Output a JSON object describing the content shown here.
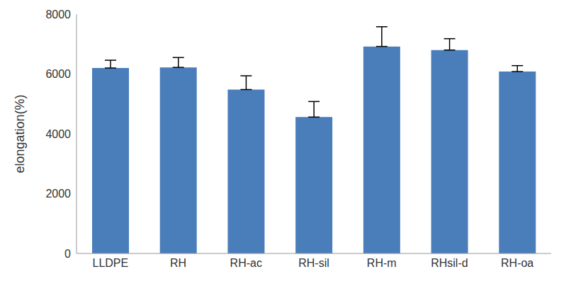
{
  "chart_data": {
    "type": "bar",
    "y_label": "elongation(%)",
    "categories": [
      "LLDPE",
      "RH",
      "RH-ac",
      "RH-sil",
      "RH-m",
      "RHsil-d",
      "RH-oa"
    ],
    "values": [
      6200,
      6220,
      5480,
      4560,
      6920,
      6800,
      6080
    ],
    "error_bars": [
      260,
      330,
      460,
      520,
      660,
      380,
      200
    ],
    "color": "#4a7ebb",
    "ylim": [
      0,
      8000
    ],
    "yticks": [
      0,
      2000,
      4000,
      6000,
      8000
    ],
    "grid": false
  }
}
